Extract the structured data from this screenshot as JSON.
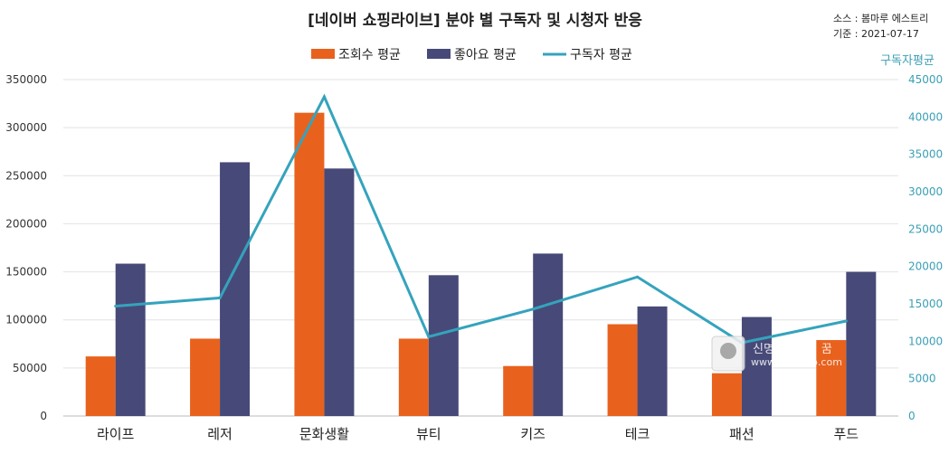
{
  "chart_data": {
    "type": "bar",
    "title": "[네이버 쇼핑라이브] 분야 별 구독자 및 시청자 반응",
    "source_line1": "소스 : 봄마루 에스트리",
    "source_line2": "기준 : 2021-07-17",
    "categories": [
      "라이프",
      "레저",
      "문화생활",
      "뷰티",
      "키즈",
      "테크",
      "패션",
      "푸드"
    ],
    "series": [
      {
        "name": "조회수 평균",
        "type": "bar",
        "axis": "left",
        "color": "#e8621e",
        "values": [
          62000,
          80500,
          315500,
          80500,
          52000,
          95500,
          44500,
          79000
        ]
      },
      {
        "name": "좋아요 평균",
        "type": "bar",
        "axis": "left",
        "color": "#474a78",
        "values": [
          158500,
          264000,
          257500,
          146500,
          169000,
          114000,
          103000,
          150000
        ]
      },
      {
        "name": "구독자 평균",
        "type": "line",
        "axis": "right",
        "color": "#35a3bd",
        "values": [
          14700,
          15800,
          42700,
          10600,
          14300,
          18600,
          9800,
          12700
        ]
      }
    ],
    "y_left": {
      "min": 0,
      "max": 350000,
      "step": 50000,
      "ticks": [
        "0",
        "50000",
        "100000",
        "150000",
        "200000",
        "250000",
        "300000",
        "350000"
      ]
    },
    "y_right": {
      "min": 0,
      "max": 45000,
      "step": 5000,
      "title": "구독자평균",
      "ticks": [
        "0",
        "5000",
        "10000",
        "15000",
        "20000",
        "25000",
        "30000",
        "35000",
        "40000",
        "45000"
      ]
    },
    "grid": true,
    "legend_position": "top-center",
    "watermark": {
      "line1": "신명스포츠의 꿈",
      "line2": "www.tongsob.com"
    }
  }
}
